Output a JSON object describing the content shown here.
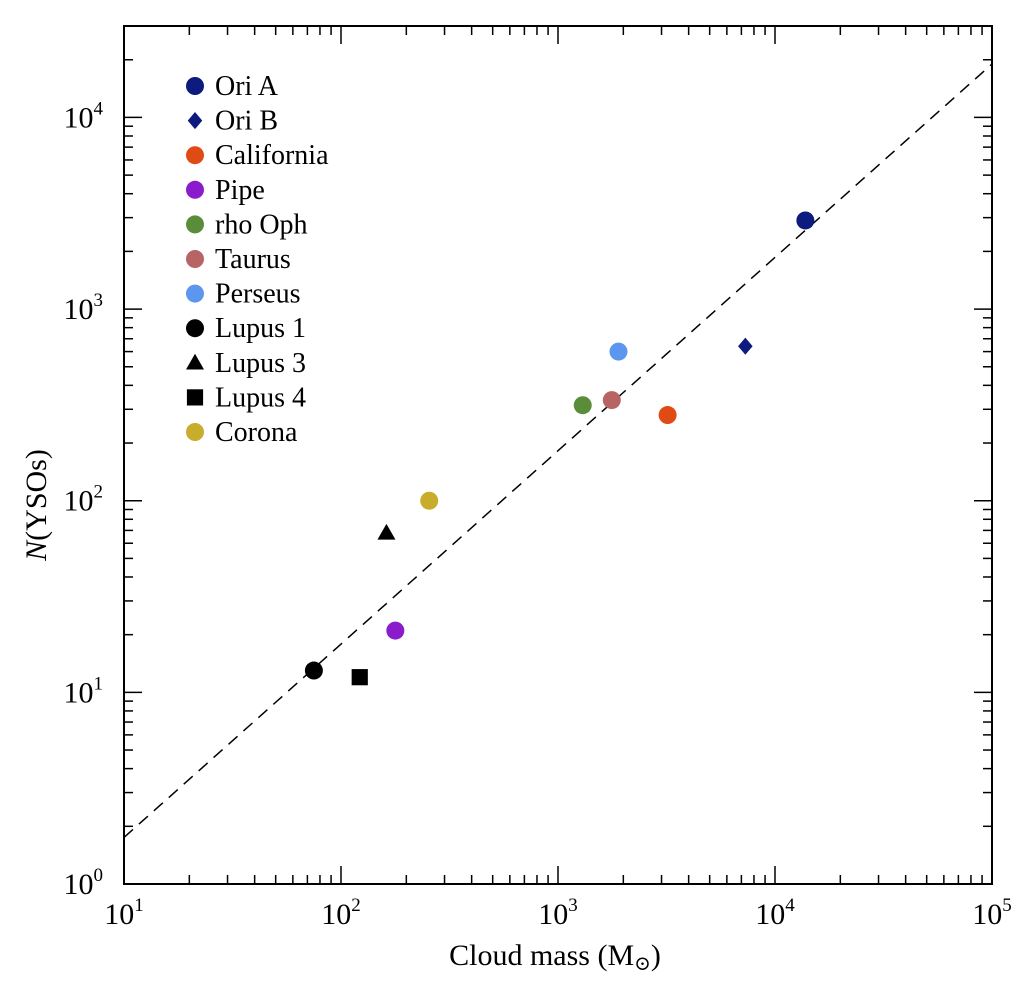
{
  "chart_data": {
    "type": "scatter",
    "xlabel": "Cloud mass (M",
    "xlabel_symbol": "⊙",
    "xlabel_close": ")",
    "ylabel_italic": "N",
    "ylabel_rest": "(YSOs)",
    "xscale": "log",
    "yscale": "log",
    "xlim": [
      10,
      100000
    ],
    "ylim": [
      1,
      30000
    ],
    "x_ticks": [
      {
        "base": "10",
        "exp": "1",
        "value": 10
      },
      {
        "base": "10",
        "exp": "2",
        "value": 100
      },
      {
        "base": "10",
        "exp": "3",
        "value": 1000
      },
      {
        "base": "10",
        "exp": "4",
        "value": 10000
      },
      {
        "base": "10",
        "exp": "5",
        "value": 100000
      }
    ],
    "y_ticks": [
      {
        "base": "10",
        "exp": "0",
        "value": 1
      },
      {
        "base": "10",
        "exp": "1",
        "value": 10
      },
      {
        "base": "10",
        "exp": "2",
        "value": 100
      },
      {
        "base": "10",
        "exp": "3",
        "value": 1000
      },
      {
        "base": "10",
        "exp": "4",
        "value": 10000
      }
    ],
    "legend_position": "top-left",
    "grid": false,
    "series": [
      {
        "name": "Ori A",
        "marker": "circle",
        "color": "#0d1a7e",
        "points": [
          [
            13800,
            2900
          ]
        ]
      },
      {
        "name": "Ori B",
        "marker": "diamond",
        "color": "#0d1a7e",
        "points": [
          [
            7300,
            640
          ]
        ]
      },
      {
        "name": "California",
        "marker": "circle",
        "color": "#e04a14",
        "points": [
          [
            3200,
            280
          ]
        ]
      },
      {
        "name": "Pipe",
        "marker": "circle",
        "color": "#8a1ccc",
        "points": [
          [
            178,
            21
          ]
        ]
      },
      {
        "name": "rho Oph",
        "marker": "circle",
        "color": "#5a8c3a",
        "points": [
          [
            1300,
            315
          ]
        ]
      },
      {
        "name": "Taurus",
        "marker": "circle",
        "color": "#b86464",
        "points": [
          [
            1770,
            335
          ]
        ]
      },
      {
        "name": "Perseus",
        "marker": "circle",
        "color": "#5c96ee",
        "points": [
          [
            1900,
            600
          ]
        ]
      },
      {
        "name": "Lupus 1",
        "marker": "circle",
        "color": "#000000",
        "points": [
          [
            75,
            13
          ]
        ]
      },
      {
        "name": "Lupus 3",
        "marker": "triangle",
        "color": "#000000",
        "points": [
          [
            162,
            68
          ]
        ]
      },
      {
        "name": "Lupus 4",
        "marker": "square",
        "color": "#000000",
        "points": [
          [
            122,
            12
          ]
        ]
      },
      {
        "name": "Corona",
        "marker": "circle",
        "color": "#c8ac2c",
        "points": [
          [
            255,
            100
          ]
        ]
      }
    ],
    "fit_line": {
      "style": "dashed",
      "color": "#000000",
      "points": [
        [
          10,
          1.75
        ],
        [
          100000,
          19000
        ]
      ]
    }
  }
}
